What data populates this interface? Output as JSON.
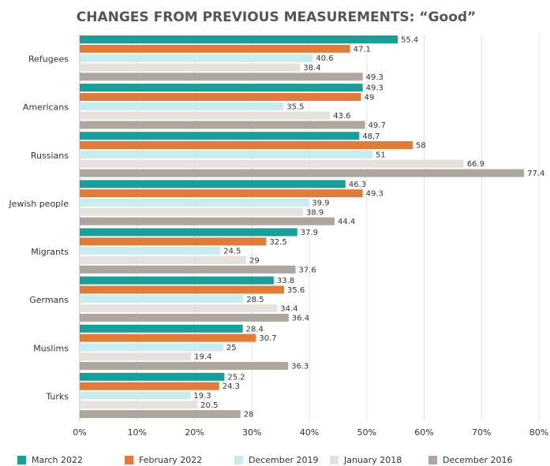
{
  "chart_data": {
    "type": "hbar",
    "title": "CHANGES FROM PREVIOUS MEASUREMENTS: “Good”",
    "categories": [
      "Refugees",
      "Americans",
      "Russians",
      "Jewish people",
      "Migrants",
      "Germans",
      "Muslims",
      "Turks"
    ],
    "series": [
      {
        "name": "March 2022",
        "color": "#1a9e9a",
        "values": [
          55.4,
          49.3,
          48.7,
          46.3,
          37.9,
          33.8,
          28.4,
          25.2
        ],
        "value_labels": [
          "55.4",
          "49.3",
          "48,7",
          "46.3",
          "37.9",
          "33.8",
          "28.4",
          "25.2"
        ]
      },
      {
        "name": "February 2022",
        "color": "#e07b39",
        "values": [
          47.1,
          49,
          58,
          49.3,
          32.5,
          35.6,
          30.7,
          24.3
        ]
      },
      {
        "name": "December 2019",
        "color": "#c9ecef",
        "values": [
          40.6,
          35.5,
          51,
          39.9,
          24.5,
          28.5,
          25,
          19.3
        ]
      },
      {
        "name": "January 2018",
        "color": "#e6e1dc",
        "values": [
          38.4,
          43.6,
          66.9,
          38.9,
          29,
          34.4,
          19.4,
          20.5
        ]
      },
      {
        "name": "December 2016",
        "color": "#aea69d",
        "values": [
          49.3,
          49.7,
          77.4,
          44.4,
          37.6,
          36.4,
          36.3,
          28
        ]
      }
    ],
    "xlim": [
      0,
      80
    ],
    "xticks": [
      {
        "value": 0,
        "label": "0%"
      },
      {
        "value": 10,
        "label": "10%"
      },
      {
        "value": 20,
        "label": "20%"
      },
      {
        "value": 30,
        "label": "30%"
      },
      {
        "value": 40,
        "label": "40%"
      },
      {
        "value": 50,
        "label": "50%"
      },
      {
        "value": 60,
        "label": "60%"
      },
      {
        "value": 70,
        "label": "70%"
      },
      {
        "value": 80,
        "label": "80%"
      }
    ],
    "grid": true,
    "legend": "bottom"
  }
}
